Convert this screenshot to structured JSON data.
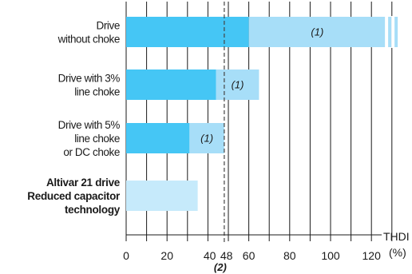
{
  "chart_data": {
    "type": "bar",
    "orientation": "horizontal",
    "stacked": true,
    "categories": [
      [
        "Drive",
        "without choke"
      ],
      [
        "Drive with 3%",
        "line choke"
      ],
      [
        "Drive with 5%",
        "line choke",
        "or DC choke"
      ],
      [
        "Altivar 21 drive",
        "Reduced capacitor",
        "technology"
      ]
    ],
    "category_bold": [
      false,
      false,
      false,
      true
    ],
    "series": [
      {
        "values": [
          60,
          44,
          31,
          null
        ],
        "color": "#45c6f5"
      },
      {
        "values": [
          67,
          21,
          17,
          null
        ],
        "color": "#a7def8",
        "label": "(1)"
      },
      {
        "values": [
          null,
          null,
          null,
          35
        ],
        "color": "#c6eafb"
      }
    ],
    "broken_bar_index": 0,
    "xlabel": [
      "THDI",
      "(%)"
    ],
    "xlim": [
      0,
      135
    ],
    "x_ticks": [
      0,
      20,
      40,
      48,
      60,
      80,
      100,
      120
    ],
    "x_tick_labels": [
      "0",
      "20",
      "40",
      "48",
      "60",
      "80",
      "100",
      "120"
    ],
    "gridlines": [
      0,
      10,
      20,
      30,
      40,
      50,
      60,
      70,
      80,
      90,
      100,
      110,
      120,
      130
    ],
    "grid": true,
    "reference_line": {
      "x": 48,
      "style": "dashed",
      "label": "(2)"
    }
  }
}
